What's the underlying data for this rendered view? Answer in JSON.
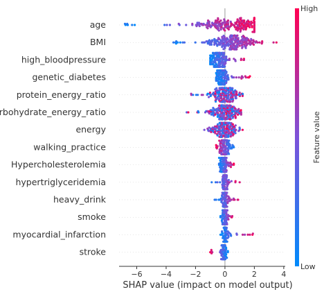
{
  "chart_data": {
    "type": "scatter",
    "subtype": "shap-beeswarm",
    "title": "",
    "xlabel": "SHAP value (impact on model output)",
    "ylabel": "",
    "xlim": [
      -7.2,
      4.1
    ],
    "xticks": [
      -6,
      -4,
      -2,
      0,
      2,
      4
    ],
    "xtick_labels": [
      "−6",
      "−4",
      "−2",
      "0",
      "2",
      "4"
    ],
    "grid": false,
    "zero_line": true,
    "colorbar": {
      "label": "Feature value",
      "high_label": "High",
      "low_label": "Low",
      "low_color": "#008afb",
      "mid_color": "#7c52d9",
      "high_color": "#ff0052"
    },
    "features": [
      {
        "name": "age",
        "min": -6.8,
        "max": 2.0,
        "center": 0.5,
        "spread": 1.3,
        "color_trend": "high-right",
        "density": 1.0
      },
      {
        "name": "BMI",
        "min": -3.5,
        "max": 3.5,
        "center": 0.6,
        "spread": 0.8,
        "color_trend": "high-right",
        "density": 1.0
      },
      {
        "name": "high_bloodpressure",
        "min": -1.0,
        "max": 1.3,
        "center": -0.4,
        "spread": 0.3,
        "color_trend": "high-right",
        "density": 0.7
      },
      {
        "name": "genetic_diabetes",
        "min": -0.6,
        "max": 1.7,
        "center": -0.2,
        "spread": 0.2,
        "color_trend": "high-right",
        "density": 0.7
      },
      {
        "name": "protein_energy_ratio",
        "min": -2.3,
        "max": 1.2,
        "center": 0.0,
        "spread": 0.5,
        "color_trend": "mixed",
        "density": 0.8
      },
      {
        "name": "carbohydrate_energy_ratio",
        "min": -2.6,
        "max": 1.1,
        "center": 0.0,
        "spread": 0.5,
        "color_trend": "mixed",
        "density": 0.8
      },
      {
        "name": "energy",
        "min": -1.4,
        "max": 1.2,
        "center": 0.0,
        "spread": 0.45,
        "color_trend": "mixed",
        "density": 0.8
      },
      {
        "name": "walking_practice",
        "min": -0.6,
        "max": 0.6,
        "center": 0.0,
        "spread": 0.2,
        "color_trend": "high-left",
        "density": 0.6
      },
      {
        "name": "Hypercholesterolemia",
        "min": -0.4,
        "max": 0.6,
        "center": -0.1,
        "spread": 0.15,
        "color_trend": "high-right",
        "density": 0.55
      },
      {
        "name": "hypertriglyceridemia",
        "min": -0.9,
        "max": 1.0,
        "center": 0.0,
        "spread": 0.12,
        "color_trend": "high-right",
        "density": 0.45
      },
      {
        "name": "heavy_drink",
        "min": -0.7,
        "max": 0.9,
        "center": 0.0,
        "spread": 0.12,
        "color_trend": "high-right",
        "density": 0.45
      },
      {
        "name": "smoke",
        "min": -0.3,
        "max": 0.5,
        "center": 0.0,
        "spread": 0.1,
        "color_trend": "high-right",
        "density": 0.45
      },
      {
        "name": "myocardial_infarction",
        "min": -0.3,
        "max": 1.9,
        "center": 0.0,
        "spread": 0.1,
        "color_trend": "high-right",
        "density": 0.45
      },
      {
        "name": "stroke",
        "min": -1.0,
        "max": 0.2,
        "center": -0.1,
        "spread": 0.1,
        "color_trend": "high-left",
        "density": 0.4
      }
    ]
  }
}
